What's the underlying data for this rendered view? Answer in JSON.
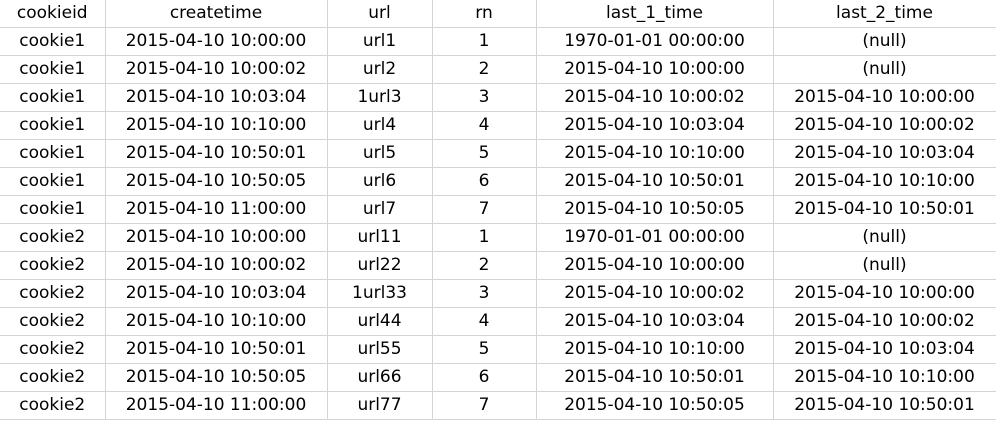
{
  "table": {
    "headers": [
      "cookieid",
      "createtime",
      "url",
      "rn",
      "last_1_time",
      "last_2_time"
    ],
    "rows": [
      [
        "cookie1",
        "2015-04-10 10:00:00",
        "url1",
        "1",
        "1970-01-01 00:00:00",
        "(null)"
      ],
      [
        "cookie1",
        "2015-04-10 10:00:02",
        "url2",
        "2",
        "2015-04-10 10:00:00",
        "(null)"
      ],
      [
        "cookie1",
        "2015-04-10 10:03:04",
        "1url3",
        "3",
        "2015-04-10 10:00:02",
        "2015-04-10 10:00:00"
      ],
      [
        "cookie1",
        "2015-04-10 10:10:00",
        "url4",
        "4",
        "2015-04-10 10:03:04",
        "2015-04-10 10:00:02"
      ],
      [
        "cookie1",
        "2015-04-10 10:50:01",
        "url5",
        "5",
        "2015-04-10 10:10:00",
        "2015-04-10 10:03:04"
      ],
      [
        "cookie1",
        "2015-04-10 10:50:05",
        "url6",
        "6",
        "2015-04-10 10:50:01",
        "2015-04-10 10:10:00"
      ],
      [
        "cookie1",
        "2015-04-10 11:00:00",
        "url7",
        "7",
        "2015-04-10 10:50:05",
        "2015-04-10 10:50:01"
      ],
      [
        "cookie2",
        "2015-04-10 10:00:00",
        "url11",
        "1",
        "1970-01-01 00:00:00",
        "(null)"
      ],
      [
        "cookie2",
        "2015-04-10 10:00:02",
        "url22",
        "2",
        "2015-04-10 10:00:00",
        "(null)"
      ],
      [
        "cookie2",
        "2015-04-10 10:03:04",
        "1url33",
        "3",
        "2015-04-10 10:00:02",
        "2015-04-10 10:00:00"
      ],
      [
        "cookie2",
        "2015-04-10 10:10:00",
        "url44",
        "4",
        "2015-04-10 10:03:04",
        "2015-04-10 10:00:02"
      ],
      [
        "cookie2",
        "2015-04-10 10:50:01",
        "url55",
        "5",
        "2015-04-10 10:10:00",
        "2015-04-10 10:03:04"
      ],
      [
        "cookie2",
        "2015-04-10 10:50:05",
        "url66",
        "6",
        "2015-04-10 10:50:01",
        "2015-04-10 10:10:00"
      ],
      [
        "cookie2",
        "2015-04-10 11:00:00",
        "url77",
        "7",
        "2015-04-10 10:50:05",
        "2015-04-10 10:50:01"
      ]
    ]
  }
}
